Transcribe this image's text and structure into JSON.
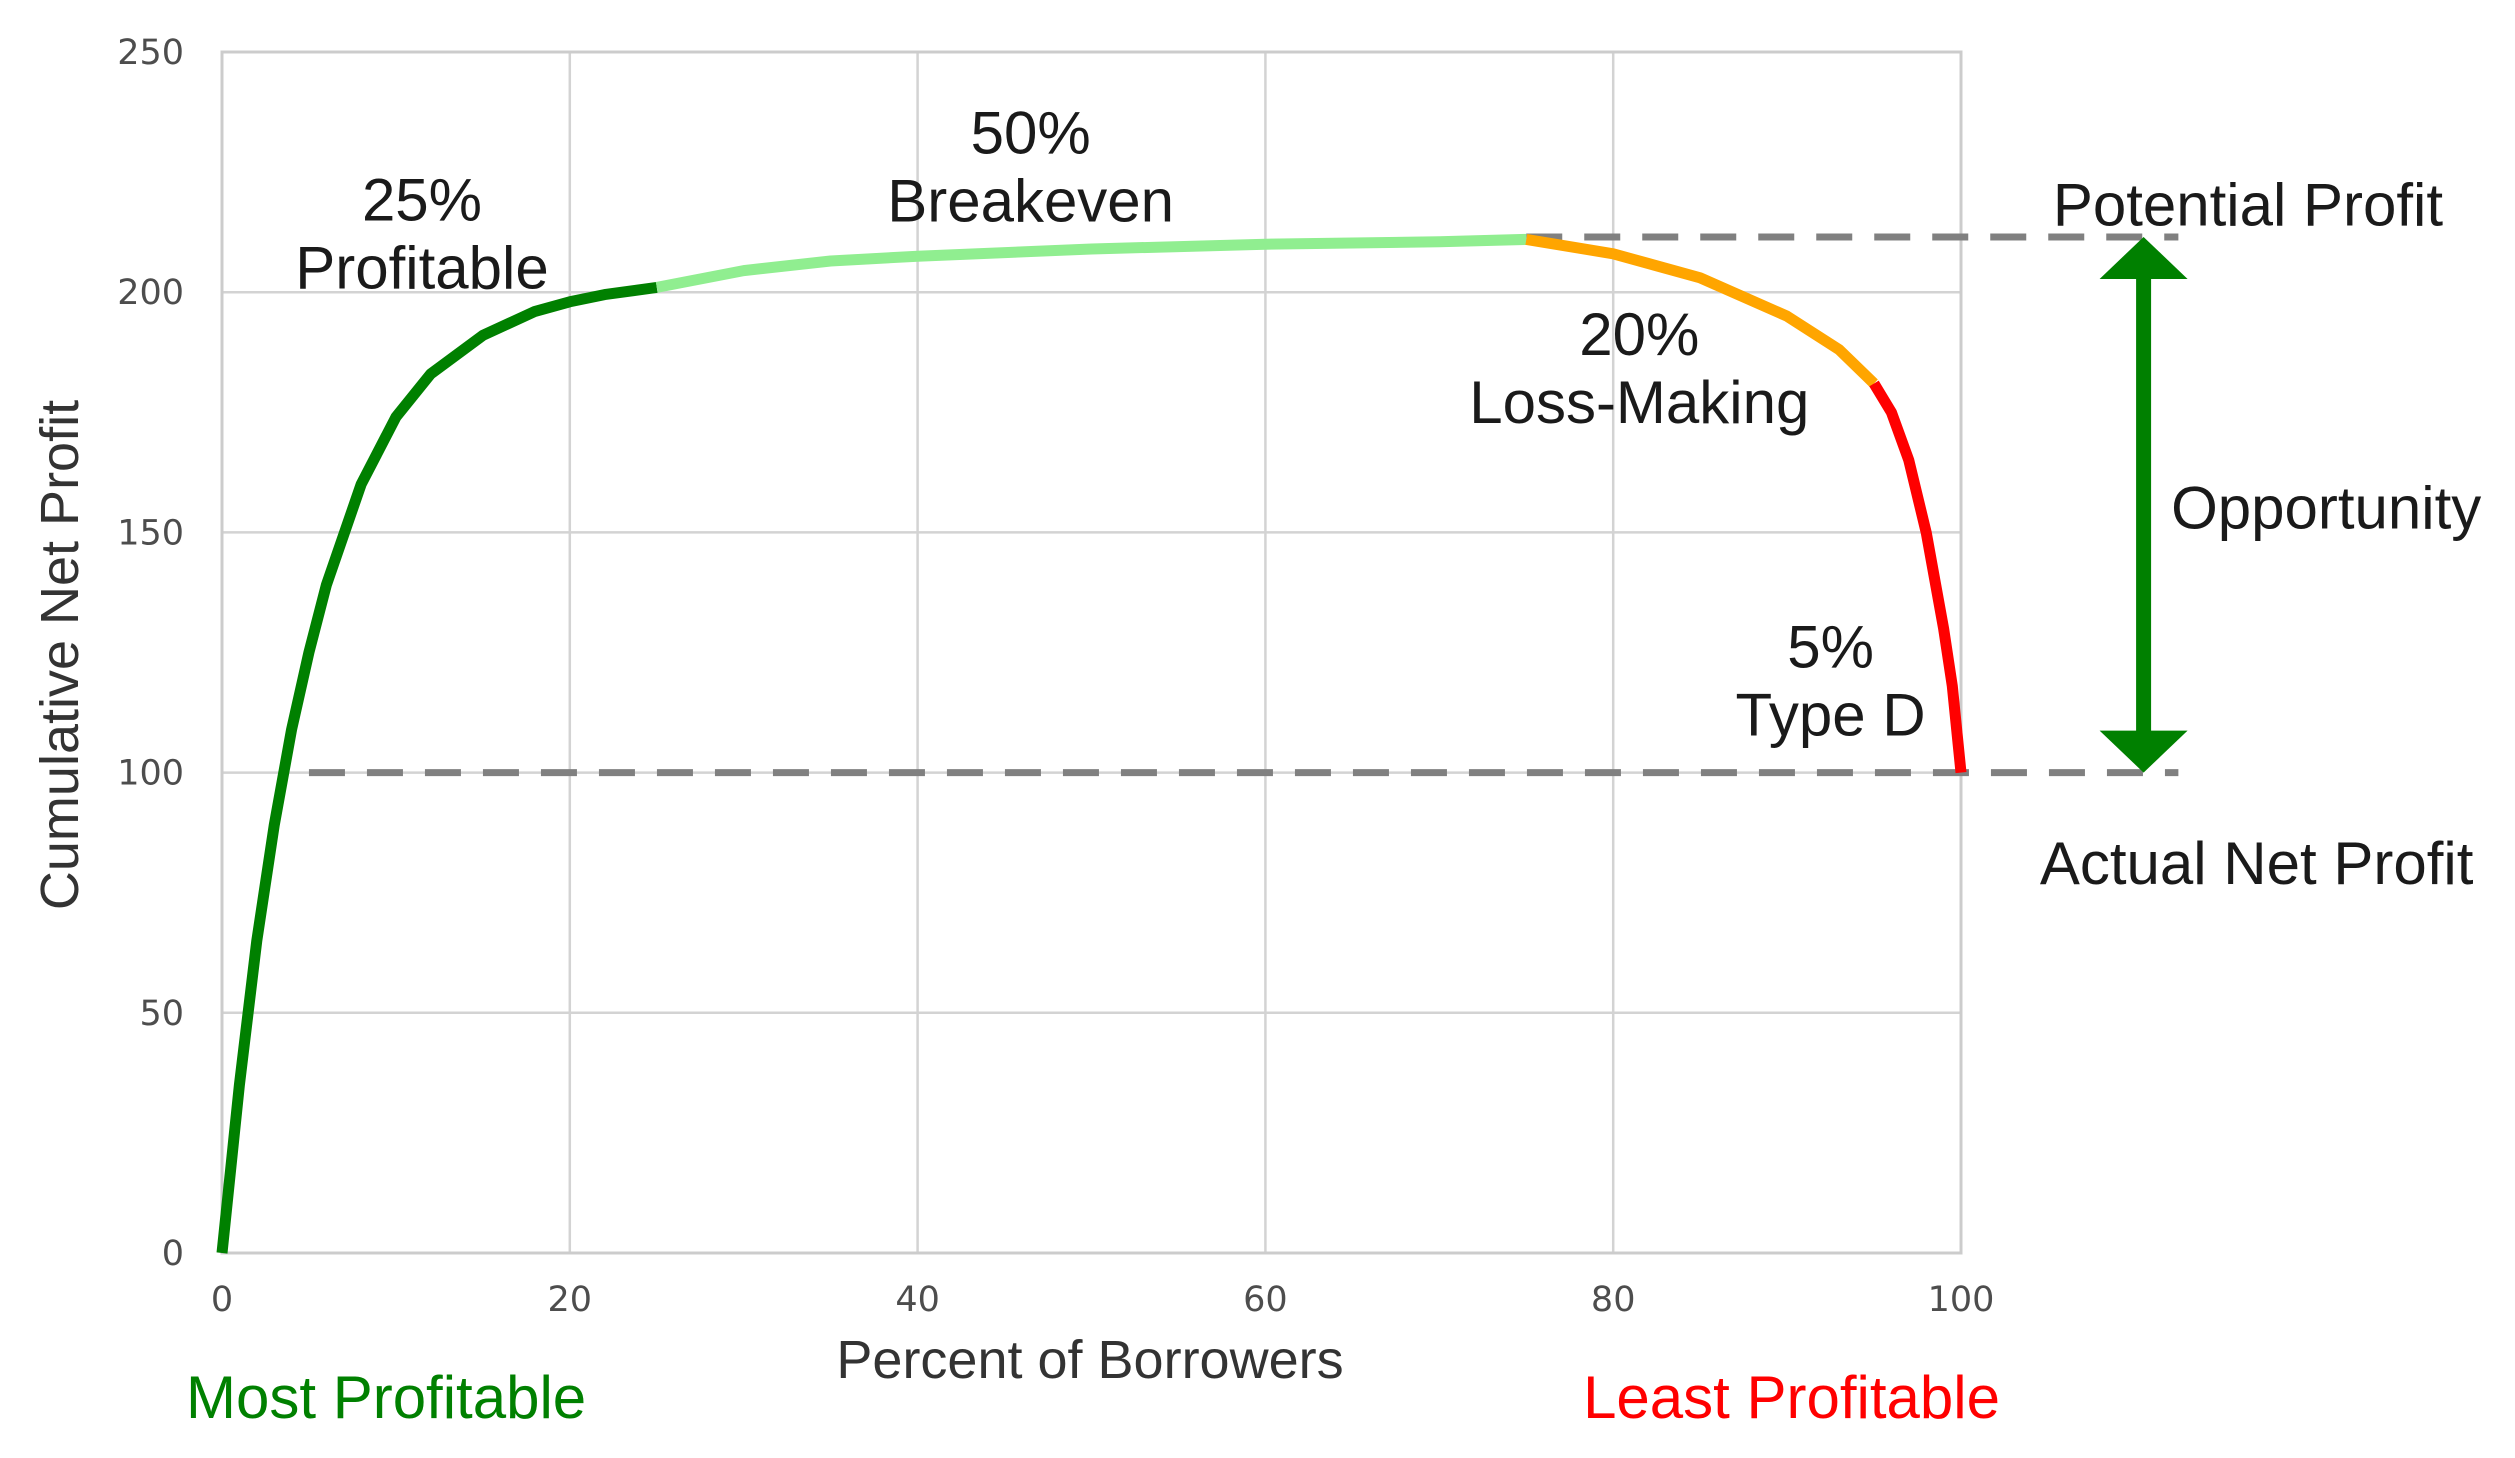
{
  "chart_data": {
    "type": "line",
    "title": "",
    "xlabel": "Percent of Borrowers",
    "ylabel": "Cumulative Net Profit",
    "xlim": [
      0,
      100
    ],
    "ylim": [
      0,
      250
    ],
    "xticks": [
      0,
      20,
      40,
      60,
      80,
      100
    ],
    "yticks": [
      0,
      50,
      100,
      150,
      200,
      250
    ],
    "xtick_labels": [
      "0",
      "20",
      "40",
      "60",
      "80",
      "100"
    ],
    "ytick_labels": [
      "0",
      "50",
      "100",
      "150",
      "200",
      "250"
    ],
    "grid": true,
    "series": [
      {
        "name": "",
        "segment": "profitable",
        "color": "#008000",
        "x": [
          0,
          1,
          2,
          3,
          4,
          5,
          6,
          8,
          10,
          12,
          15,
          18,
          20,
          22,
          25
        ],
        "y": [
          0,
          35,
          65,
          89,
          109,
          125,
          139,
          160,
          174,
          183,
          191,
          196,
          198,
          199.5,
          201
        ]
      },
      {
        "name": "",
        "segment": "breakeven",
        "color": "#90ee90",
        "x": [
          25,
          30,
          35,
          40,
          50,
          60,
          70,
          75
        ],
        "y": [
          201,
          204.5,
          206.5,
          207.5,
          209,
          210,
          210.5,
          211
        ]
      },
      {
        "name": "",
        "segment": "loss-making",
        "color": "#ffa500",
        "x": [
          75,
          80,
          85,
          90,
          93,
          95
        ],
        "y": [
          211,
          208,
          203,
          195,
          188,
          181
        ]
      },
      {
        "name": "",
        "segment": "type-d",
        "color": "#ff0000",
        "x": [
          95,
          96,
          97,
          98,
          99,
          99.5,
          100
        ],
        "y": [
          181,
          175,
          165,
          150,
          130,
          118,
          100
        ]
      }
    ],
    "reference_lines": [
      {
        "name": "potential-profit",
        "y": 211.5,
        "x_from": 75,
        "x_to": 112.5,
        "color": "#808080",
        "style": "dashed"
      },
      {
        "name": "actual-net-profit",
        "y": 100,
        "x_from": 5,
        "x_to": 112.5,
        "color": "#808080",
        "style": "dashed"
      }
    ],
    "opportunity_arrow": {
      "x": 110.5,
      "y_from": 100,
      "y_to": 211.5,
      "color": "#008000"
    },
    "annotations": [
      {
        "lines": [
          "25%",
          "Profitable"
        ],
        "x": 11.5,
        "y": 212
      },
      {
        "lines": [
          "50%",
          "Breakeven"
        ],
        "x": 46.5,
        "y": 226
      },
      {
        "lines": [
          "20%",
          "Loss-Making"
        ],
        "x": 81.5,
        "y": 184
      },
      {
        "lines": [
          "5%",
          "Type D"
        ],
        "x": 92.5,
        "y": 119
      },
      {
        "lines": [
          "Potential Profit"
        ],
        "x": 116.5,
        "y": 218
      },
      {
        "lines": [
          "Opportunity"
        ],
        "x": 121,
        "y": 155
      },
      {
        "lines": [
          "Actual Net Profit"
        ],
        "x": 117,
        "y": 81
      }
    ],
    "footer_labels": {
      "left": {
        "text": "Most Profitable",
        "color": "#008000"
      },
      "right": {
        "text": "Least Profitable",
        "color": "#ff0000"
      }
    }
  }
}
